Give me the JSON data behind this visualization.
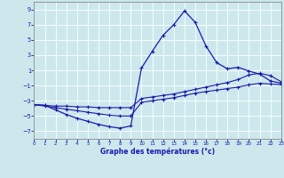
{
  "xlabel": "Graphe des températures (°c)",
  "background_color": "#cce8ed",
  "grid_color": "#b0d4da",
  "line_color": "#1a1aaa",
  "xlim": [
    0,
    23
  ],
  "ylim": [
    -8,
    10
  ],
  "yticks": [
    -7,
    -5,
    -3,
    -1,
    1,
    3,
    5,
    7,
    9
  ],
  "xticks": [
    0,
    1,
    2,
    3,
    4,
    5,
    6,
    7,
    8,
    9,
    10,
    11,
    12,
    13,
    14,
    15,
    16,
    17,
    18,
    19,
    20,
    21,
    22,
    23
  ],
  "hours": [
    0,
    1,
    2,
    3,
    4,
    5,
    6,
    7,
    8,
    9,
    10,
    11,
    12,
    13,
    14,
    15,
    16,
    17,
    18,
    19,
    20,
    21,
    22,
    23
  ],
  "temp_peak": [
    -3.5,
    -3.6,
    -4.2,
    -4.8,
    -5.3,
    -5.7,
    -6.1,
    -6.4,
    -6.6,
    -6.3,
    1.3,
    3.5,
    5.6,
    7.0,
    8.8,
    7.3,
    4.2,
    2.0,
    1.2,
    1.4,
    0.9,
    0.5,
    -0.4,
    -0.7
  ],
  "temp_upper": [
    -3.5,
    -3.6,
    -3.7,
    -3.7,
    -3.8,
    -3.8,
    -3.9,
    -3.9,
    -3.9,
    -3.9,
    -2.7,
    -2.5,
    -2.3,
    -2.1,
    -1.8,
    -1.5,
    -1.2,
    -0.9,
    -0.6,
    -0.2,
    0.4,
    0.6,
    0.3,
    -0.5
  ],
  "temp_lower": [
    -3.5,
    -3.7,
    -3.9,
    -4.1,
    -4.3,
    -4.5,
    -4.7,
    -4.9,
    -5.0,
    -5.0,
    -3.2,
    -3.0,
    -2.8,
    -2.6,
    -2.3,
    -2.0,
    -1.8,
    -1.6,
    -1.4,
    -1.2,
    -0.9,
    -0.7,
    -0.8,
    -0.9
  ]
}
